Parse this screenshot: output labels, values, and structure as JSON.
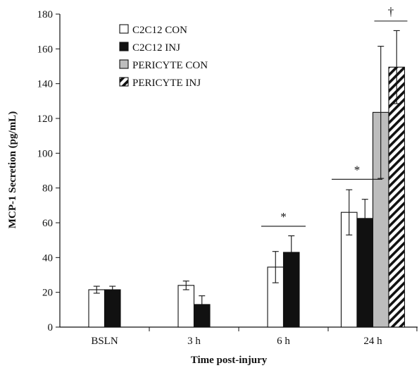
{
  "chart_data": {
    "type": "bar",
    "title": "",
    "xlabel": "Time post-injury",
    "ylabel": "MCP-1 Secretion (pg/mL)",
    "ylim": [
      0,
      180
    ],
    "yticks": [
      "0",
      "20",
      "40",
      "60",
      "80",
      "100",
      "120",
      "140",
      "160",
      "180"
    ],
    "categories": [
      "BSLN",
      "3 h",
      "6 h",
      "24 h"
    ],
    "legend_position": "top-left",
    "series": [
      {
        "name": "C2C12 CON",
        "style": "white",
        "values": [
          21.5,
          24,
          34.5,
          66
        ],
        "errors": [
          2,
          2.5,
          9,
          13
        ]
      },
      {
        "name": "C2C12 INJ",
        "style": "black",
        "values": [
          21.5,
          13,
          43,
          62.5
        ],
        "errors": [
          2,
          5,
          9.5,
          11
        ]
      },
      {
        "name": "PERICYTE CON",
        "style": "gray",
        "values": [
          null,
          null,
          null,
          123.5
        ],
        "errors": [
          null,
          null,
          null,
          38
        ]
      },
      {
        "name": "PERICYTE INJ",
        "style": "hatched",
        "values": [
          null,
          null,
          null,
          149.5
        ],
        "errors": [
          null,
          null,
          null,
          21
        ]
      }
    ],
    "annotations": [
      {
        "text": "*",
        "category": "6 h",
        "y": 58
      },
      {
        "text": "*",
        "category": "24 h",
        "y": 85
      },
      {
        "text": "†",
        "category": "24 h",
        "y": 176
      }
    ],
    "colors": {
      "white": "#ffffff",
      "black": "#111111",
      "gray": "#bdbdbd",
      "stroke": "#111111"
    }
  }
}
